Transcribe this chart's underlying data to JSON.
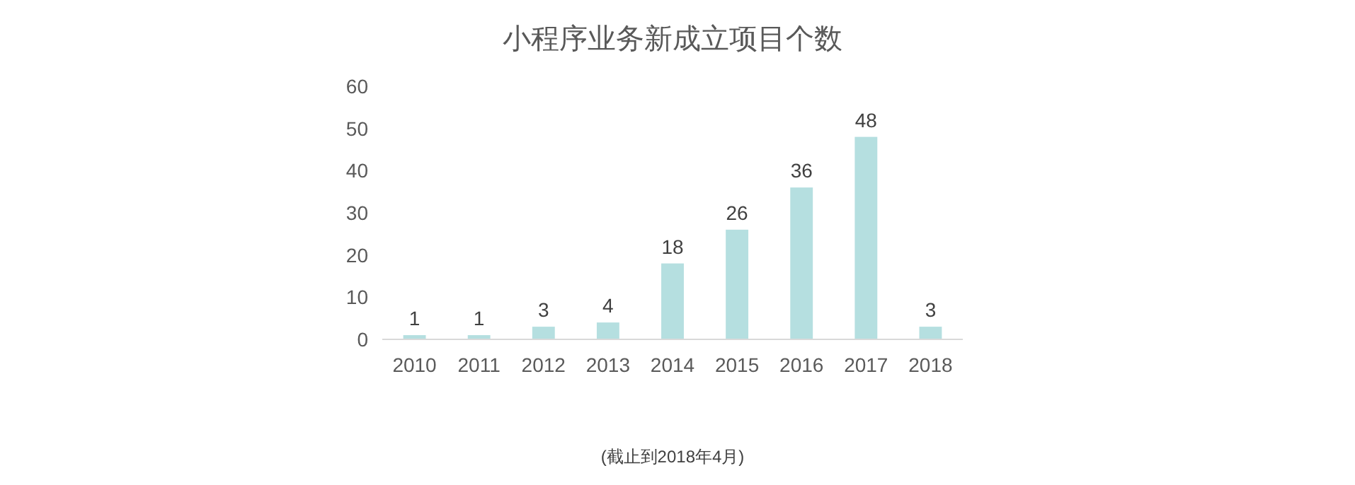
{
  "chart_data": {
    "type": "bar",
    "title": "小程序业务新成立项目个数",
    "categories": [
      "2010",
      "2011",
      "2012",
      "2013",
      "2014",
      "2015",
      "2016",
      "2017",
      "2018"
    ],
    "values": [
      1,
      1,
      3,
      4,
      18,
      26,
      36,
      48,
      3
    ],
    "color": "#b5dfe0",
    "ylim": [
      0,
      60
    ],
    "yticks": [
      0,
      10,
      20,
      30,
      40,
      50,
      60
    ],
    "data_labels": true,
    "annotations": [
      "(截止到2018年4月)"
    ]
  }
}
